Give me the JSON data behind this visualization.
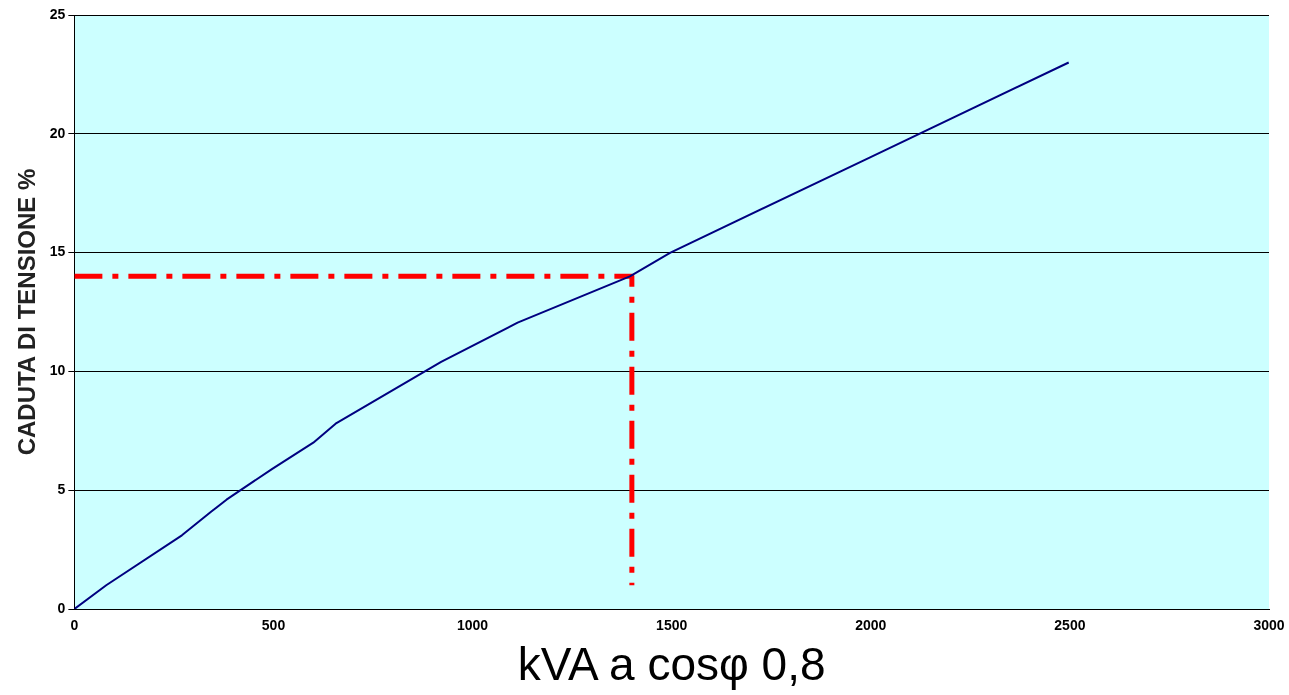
{
  "chart_data": {
    "type": "line",
    "xlabel": "kVA a cosφ 0,8",
    "ylabel": "CADUTA DI TENSIONE %",
    "xlim": [
      0,
      3000
    ],
    "xticks": [
      0,
      500,
      1000,
      1500,
      2000,
      2500,
      3000
    ],
    "ylim": [
      0,
      25
    ],
    "yticks": [
      0,
      5,
      10,
      15,
      20,
      25
    ],
    "grid": "y",
    "legend": false,
    "marker": "none",
    "series": [
      {
        "color": "#000080",
        "line_style": "solid",
        "x": [
          0,
          80,
          270,
          344,
          382,
          497,
          600,
          656,
          921,
          1113,
          1395,
          1497,
          1997,
          2497
        ],
        "values": [
          0,
          1,
          3.1,
          4.1,
          4.6,
          5.9,
          7.0,
          7.8,
          10.4,
          12.05,
          14.0,
          15,
          19,
          23
        ]
      },
      {
        "color": "#ff0000",
        "line_style": "dashed",
        "x": [
          0,
          1400,
          1400
        ],
        "values": [
          14,
          14,
          1
        ]
      }
    ]
  }
}
